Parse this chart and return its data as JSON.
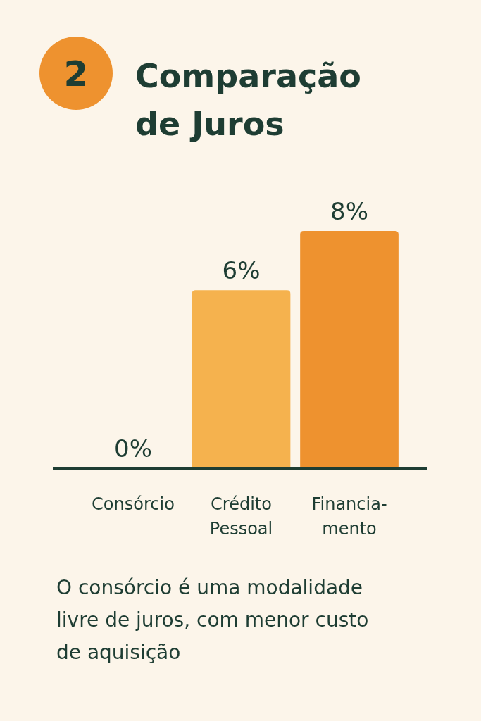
{
  "chart_data": {
    "type": "bar",
    "title": "Comparação de Juros",
    "categories": [
      "Consórcio",
      "Crédito Pessoal",
      "Financia-mento"
    ],
    "values": [
      0,
      6,
      8
    ],
    "colors": [
      "#2eaab0",
      "#f5b24e",
      "#ee922f"
    ],
    "value_labels": [
      "0%",
      "6%",
      "8%"
    ],
    "annotations": [
      "2",
      "O consórcio é uma modalidade livre de juros, com menor custo de aquisição"
    ]
  }
}
